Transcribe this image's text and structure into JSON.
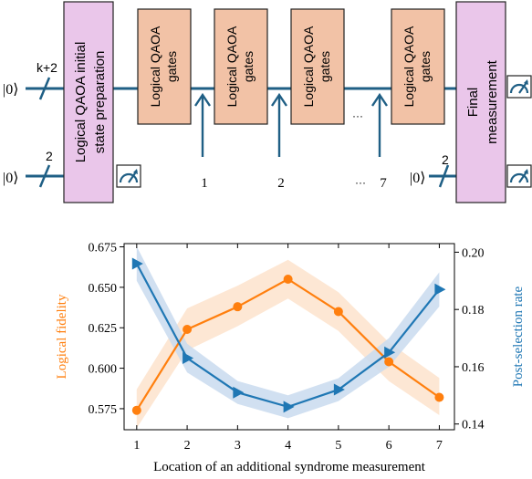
{
  "colors": {
    "wire": "#1f5f85",
    "gate_fill": "#f2c2a6",
    "gate_stroke": "#222222",
    "prep_fill": "#eac6ea",
    "fidelity": "#ff7f0e",
    "fidelity_band": "#fde3cc",
    "postsel": "#1f77b4",
    "postsel_band": "#c9dbef",
    "axis": "#000000"
  },
  "circuit": {
    "top_ket": "|0⟩",
    "top_count": "k+2",
    "bottom_ket": "|0⟩",
    "bottom_count": "2",
    "prep_label_line1": "Logical QAOA initial",
    "prep_label_line2": "state preparation",
    "gate_line1": "Logical QAOA",
    "gate_line2": "gates",
    "ellipsis_top": "···",
    "ellipsis_bottom": "···",
    "final_label_line1": "Final",
    "final_label_line2": "measurement",
    "ancilla_ket": "|0⟩",
    "ancilla_count": "2",
    "slot_labels": [
      "1",
      "2",
      "7"
    ],
    "icons": [
      "meter-icon",
      "meter-icon",
      "meter-icon"
    ]
  },
  "chart_data": {
    "type": "line",
    "x": [
      1,
      2,
      3,
      4,
      5,
      6,
      7
    ],
    "xlabel": "Location of an additional syndrome measurement",
    "xlim": [
      0.75,
      7.3
    ],
    "xticks": [
      "1",
      "2",
      "3",
      "4",
      "5",
      "6",
      "7"
    ],
    "ylabel_left": "Logical fidelity",
    "ylim_left": [
      0.562,
      0.677
    ],
    "yticks_left": [
      "0.575",
      "0.600",
      "0.625",
      "0.650",
      "0.675"
    ],
    "ylabel_right": "Post-selection rate",
    "ylim_right": [
      0.138,
      0.203
    ],
    "yticks_right": [
      "0.14",
      "0.16",
      "0.18",
      "0.20"
    ],
    "grid": false,
    "series": [
      {
        "axis": "left",
        "marker": "circle",
        "values": [
          0.574,
          0.624,
          0.638,
          0.655,
          0.635,
          0.604,
          0.582
        ],
        "band_low": [
          0.563,
          0.611,
          0.626,
          0.643,
          0.623,
          0.592,
          0.571
        ],
        "band_high": [
          0.587,
          0.637,
          0.651,
          0.667,
          0.647,
          0.616,
          0.594
        ]
      },
      {
        "axis": "right",
        "marker": "triangle-right",
        "values": [
          0.196,
          0.163,
          0.151,
          0.146,
          0.152,
          0.165,
          0.187
        ],
        "band_low": [
          0.19,
          0.158,
          0.147,
          0.142,
          0.148,
          0.16,
          0.181
        ],
        "band_high": [
          0.202,
          0.168,
          0.155,
          0.15,
          0.156,
          0.17,
          0.193
        ]
      }
    ]
  }
}
